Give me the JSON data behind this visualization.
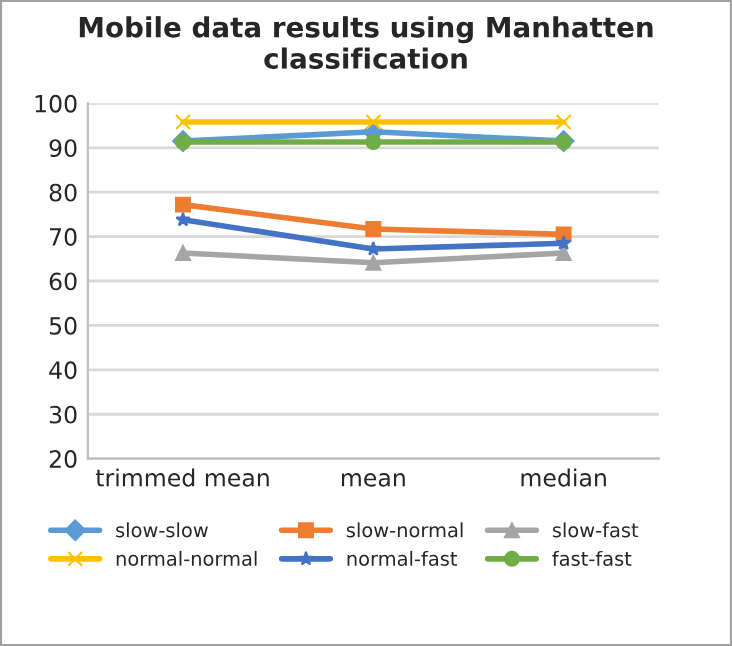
{
  "chart_data": {
    "type": "line",
    "title": "Mobile data results using Manhatten classification",
    "categories": [
      "trimmed mean",
      "mean",
      "median"
    ],
    "series": [
      {
        "name": "slow-slow",
        "color": "#5b9bd5",
        "marker": "diamond",
        "values": [
          91.5,
          93.6,
          91.5
        ]
      },
      {
        "name": "slow-normal",
        "color": "#ed7d31",
        "marker": "square",
        "values": [
          77.2,
          71.7,
          70.5
        ]
      },
      {
        "name": "slow-fast",
        "color": "#a5a5a5",
        "marker": "triangle",
        "values": [
          66.3,
          64.1,
          66.3
        ]
      },
      {
        "name": "normal-normal",
        "color": "#ffc000",
        "marker": "cross",
        "values": [
          95.8,
          95.8,
          95.8
        ]
      },
      {
        "name": "normal-fast",
        "color": "#4472c4",
        "marker": "star",
        "values": [
          73.8,
          67.2,
          68.5
        ]
      },
      {
        "name": "fast-fast",
        "color": "#70ad47",
        "marker": "circle",
        "values": [
          91.3,
          91.3,
          91.3
        ]
      }
    ],
    "ylim": [
      20,
      100
    ],
    "yticks": [
      20,
      30,
      40,
      50,
      60,
      70,
      80,
      90,
      100
    ],
    "grid": "y",
    "legend": "bottom"
  }
}
